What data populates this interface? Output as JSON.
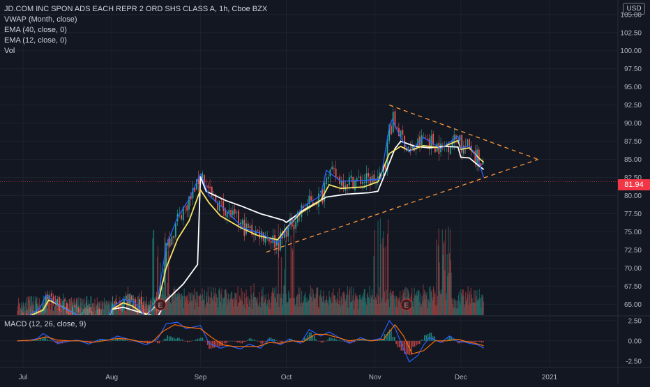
{
  "legend": {
    "title": "JD.COM INC SPON ADS EACH REPR 2 ORD SHS CLASS A, 1h, Cboe BZX",
    "vwap": "VWAP (Month, close)",
    "ema40": "EMA (40, close, 0)",
    "ema12": "EMA (12, close, 0)",
    "vol": "Vol"
  },
  "macd_label": "MACD (12, 26, close, 9)",
  "currency": "USD",
  "last_price": "81.94",
  "earnings_marker": "E",
  "colors": {
    "background": "#131722",
    "grid": "#1e222d",
    "up": "#26a69a",
    "down": "#ef5350",
    "vwap": "#ffffff",
    "ema40": "#f7e46a",
    "ema12": "#2962ff",
    "trendline": "#ff9a3c",
    "macd": "#2962ff",
    "signal": "#ff6d00",
    "price_tag": "#f23645"
  },
  "chart_data": [
    {
      "type": "line",
      "panel": "price",
      "title": "JD.COM INC SPON ADS EACH REPR 2 ORD SHS CLASS A, 1h, Cboe BZX",
      "x_ticks": [
        "Jul",
        "Aug",
        "Sep",
        "Oct",
        "Nov",
        "Dec",
        "2021"
      ],
      "y_ticks": [
        "105.00",
        "102.50",
        "100.00",
        "97.50",
        "95.00",
        "92.50",
        "90.00",
        "87.50",
        "85.00",
        "82.50",
        "80.00",
        "77.50",
        "75.00",
        "72.50",
        "70.00",
        "67.50",
        "65.00"
      ],
      "ylim": [
        63.5,
        107
      ],
      "last_price": 81.94,
      "series": [
        {
          "name": "VWAP (Month, close)",
          "x": [
            "2020-07-01",
            "2020-07-15",
            "2020-07-31",
            "2020-08-01",
            "2020-08-05",
            "2020-08-10",
            "2020-08-17",
            "2020-08-20",
            "2020-08-26",
            "2020-08-31",
            "2020-09-01",
            "2020-09-03",
            "2020-09-10",
            "2020-09-15",
            "2020-09-22",
            "2020-09-30",
            "2020-10-01",
            "2020-10-07",
            "2020-10-15",
            "2020-10-22",
            "2020-10-30",
            "2020-11-02",
            "2020-11-05",
            "2020-11-08",
            "2020-11-10",
            "2020-11-15",
            "2020-11-20",
            "2020-11-25",
            "2020-11-30",
            "2020-12-01",
            "2020-12-04",
            "2020-12-07",
            "2020-12-09"
          ],
          "y": [
            63,
            63,
            63,
            64.3,
            64.6,
            64,
            63.2,
            65.5,
            67.8,
            70.5,
            82.6,
            80.6,
            79.3,
            78.6,
            77.5,
            76.6,
            76.3,
            78,
            79.8,
            80.2,
            80.4,
            80.6,
            83.5,
            86.5,
            87.5,
            86.8,
            86.6,
            86.8,
            86.7,
            85.3,
            85.2,
            84.2,
            83.6
          ]
        },
        {
          "name": "EMA (40, close, 0)",
          "x": [
            "2020-07-01",
            "2020-07-08",
            "2020-07-10",
            "2020-07-14",
            "2020-07-20",
            "2020-07-31",
            "2020-08-01",
            "2020-08-05",
            "2020-08-08",
            "2020-08-13",
            "2020-08-17",
            "2020-08-20",
            "2020-08-24",
            "2020-08-28",
            "2020-09-01",
            "2020-09-04",
            "2020-09-08",
            "2020-09-15",
            "2020-09-21",
            "2020-09-28",
            "2020-10-01",
            "2020-10-06",
            "2020-10-13",
            "2020-10-16",
            "2020-10-20",
            "2020-10-28",
            "2020-11-02",
            "2020-11-06",
            "2020-11-10",
            "2020-11-13",
            "2020-11-18",
            "2020-11-24",
            "2020-11-30",
            "2020-12-01",
            "2020-12-04",
            "2020-12-07",
            "2020-12-09"
          ],
          "y": [
            63,
            64.2,
            65.6,
            64.8,
            63.5,
            63,
            64.3,
            65.2,
            64.8,
            63.5,
            65,
            70,
            74,
            76.5,
            80.8,
            79,
            77.2,
            75.6,
            74.5,
            73.9,
            75.5,
            77.6,
            79.3,
            81.5,
            81,
            81.2,
            81.9,
            85.8,
            86.8,
            86.2,
            86.9,
            86.6,
            87.6,
            86.4,
            86.6,
            85.3,
            84.6
          ]
        },
        {
          "name": "EMA (12, close, 0)",
          "x": [
            "2020-07-01",
            "2020-07-07",
            "2020-07-09",
            "2020-07-13",
            "2020-07-20",
            "2020-07-31",
            "2020-08-01",
            "2020-08-05",
            "2020-08-09",
            "2020-08-13",
            "2020-08-17",
            "2020-08-20",
            "2020-08-24",
            "2020-08-28",
            "2020-09-01",
            "2020-09-04",
            "2020-09-09",
            "2020-09-16",
            "2020-09-22",
            "2020-09-28",
            "2020-10-01",
            "2020-10-07",
            "2020-10-13",
            "2020-10-15",
            "2020-10-20",
            "2020-10-28",
            "2020-11-03",
            "2020-11-06",
            "2020-11-07",
            "2020-11-10",
            "2020-11-13",
            "2020-11-18",
            "2020-11-24",
            "2020-11-30",
            "2020-12-01",
            "2020-12-04",
            "2020-12-07",
            "2020-12-09"
          ],
          "y": [
            63,
            64.5,
            66.3,
            65,
            63.5,
            63,
            64.5,
            65.7,
            65.3,
            63.2,
            65.5,
            73,
            77,
            79.5,
            83,
            80,
            78.3,
            75.5,
            74.8,
            73.4,
            75.3,
            78.5,
            80,
            83.5,
            82,
            82.1,
            82.3,
            89.5,
            90.5,
            88,
            86,
            88,
            86.5,
            88.2,
            86.5,
            86.9,
            85,
            82.5
          ]
        }
      ],
      "trendlines": [
        {
          "name": "upper",
          "x": [
            "2020-11-06",
            "2020-12-28"
          ],
          "y": [
            92.5,
            85
          ]
        },
        {
          "name": "lower",
          "x": [
            "2020-09-24",
            "2020-12-28"
          ],
          "y": [
            72.2,
            85
          ]
        }
      ],
      "earnings_markers": [
        "2020-08-18",
        "2020-11-12"
      ]
    },
    {
      "type": "bar",
      "panel": "volume",
      "name": "Vol",
      "x_start": "2020-06-29",
      "x_end": "2020-12-09",
      "pattern": "hourly volume bars, low through July and early August, spikes near 2020-08-17 to 2020-08-20, 2020-10-01, 2020-11-02 to 2020-11-05 and 2020-11-25"
    },
    {
      "type": "line",
      "panel": "macd",
      "title": "MACD (12, 26, close, 9)",
      "y_ticks": [
        "2.50",
        "0.00",
        "-2.50"
      ],
      "ylim": [
        -3.2,
        3.0
      ],
      "series": [
        {
          "name": "MACD",
          "x": [
            "2020-06-29",
            "2020-07-03",
            "2020-07-06",
            "2020-07-08",
            "2020-07-10",
            "2020-07-13",
            "2020-07-16",
            "2020-07-20",
            "2020-07-24",
            "2020-07-28",
            "2020-07-31",
            "2020-08-03",
            "2020-08-06",
            "2020-08-10",
            "2020-08-13",
            "2020-08-17",
            "2020-08-20",
            "2020-08-24",
            "2020-08-27",
            "2020-09-01",
            "2020-09-04",
            "2020-09-08",
            "2020-09-11",
            "2020-09-15",
            "2020-09-18",
            "2020-09-22",
            "2020-09-25",
            "2020-09-29",
            "2020-10-02",
            "2020-10-06",
            "2020-10-09",
            "2020-10-13",
            "2020-10-16",
            "2020-10-20",
            "2020-10-23",
            "2020-10-27",
            "2020-10-30",
            "2020-11-03",
            "2020-11-06",
            "2020-11-08",
            "2020-11-11",
            "2020-11-13",
            "2020-11-16",
            "2020-11-18",
            "2020-11-20",
            "2020-11-24",
            "2020-11-27",
            "2020-11-30",
            "2020-12-02",
            "2020-12-04",
            "2020-12-07",
            "2020-12-09"
          ],
          "y": [
            0,
            0.05,
            0.3,
            0.9,
            0.5,
            -0.3,
            -0.1,
            0.1,
            -0.4,
            0.2,
            0.1,
            0.6,
            0.3,
            -0.1,
            -0.5,
            0.2,
            2.1,
            2.3,
            1.5,
            1.9,
            -0.3,
            -0.9,
            -0.6,
            -1.0,
            -0.4,
            -0.9,
            0.2,
            -0.5,
            0.2,
            -0.3,
            1.4,
            0.6,
            1.1,
            0.3,
            -0.3,
            0.4,
            0.0,
            0.3,
            2.5,
            1.6,
            -1.0,
            -2.6,
            -1.8,
            -0.5,
            0.4,
            -0.2,
            0.6,
            -0.1,
            -0.1,
            -0.3,
            -0.5,
            -0.9
          ]
        },
        {
          "name": "Signal",
          "x": [
            "2020-06-29",
            "2020-07-05",
            "2020-07-09",
            "2020-07-13",
            "2020-07-17",
            "2020-07-21",
            "2020-07-25",
            "2020-07-29",
            "2020-08-03",
            "2020-08-07",
            "2020-08-11",
            "2020-08-15",
            "2020-08-19",
            "2020-08-23",
            "2020-08-27",
            "2020-09-01",
            "2020-09-05",
            "2020-09-09",
            "2020-09-13",
            "2020-09-17",
            "2020-09-21",
            "2020-09-25",
            "2020-09-29",
            "2020-10-03",
            "2020-10-07",
            "2020-10-11",
            "2020-10-15",
            "2020-10-19",
            "2020-10-23",
            "2020-10-27",
            "2020-10-31",
            "2020-11-04",
            "2020-11-08",
            "2020-11-11",
            "2020-11-14",
            "2020-11-18",
            "2020-11-22",
            "2020-11-26",
            "2020-11-30",
            "2020-12-03",
            "2020-12-06",
            "2020-12-09"
          ],
          "y": [
            0,
            0.1,
            0.5,
            0.1,
            0.0,
            0.0,
            -0.2,
            0.0,
            0.3,
            0.2,
            -0.1,
            -0.2,
            1.2,
            2.0,
            1.7,
            1.5,
            0.4,
            -0.5,
            -0.7,
            -0.7,
            -0.7,
            -0.2,
            -0.3,
            0.0,
            -0.1,
            0.8,
            0.8,
            0.4,
            0.0,
            0.2,
            0.0,
            0.2,
            2.0,
            0.6,
            -1.6,
            -1.2,
            0.0,
            0.0,
            0.2,
            -0.1,
            -0.3,
            -0.6
          ]
        }
      ]
    }
  ]
}
